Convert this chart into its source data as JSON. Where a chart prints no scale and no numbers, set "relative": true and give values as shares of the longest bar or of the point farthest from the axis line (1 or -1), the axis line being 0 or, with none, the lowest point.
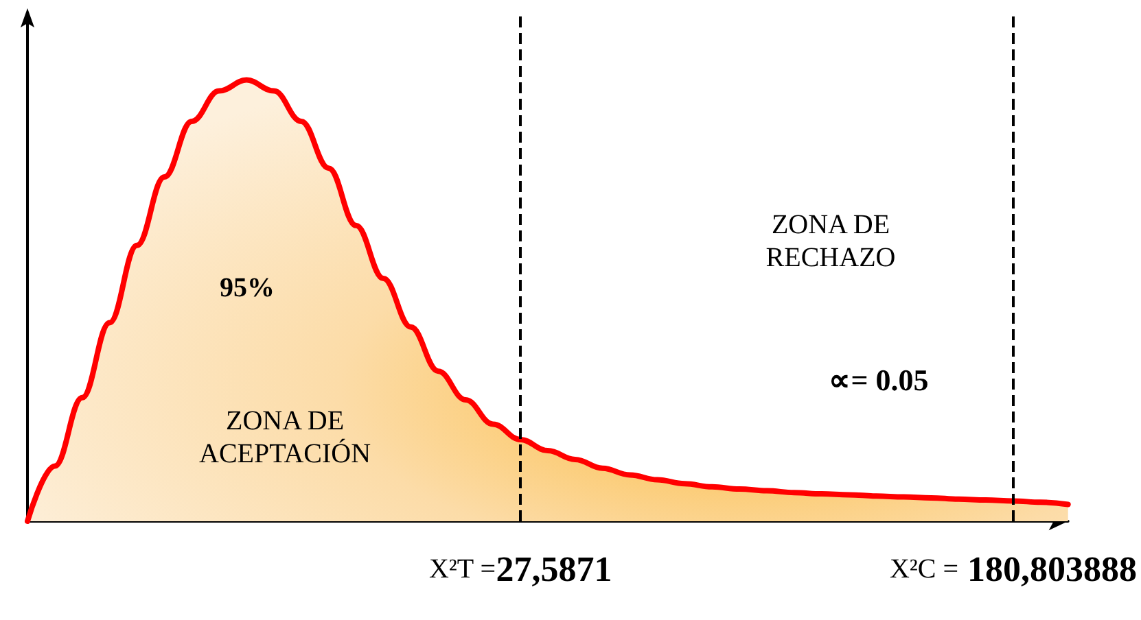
{
  "chart_data": {
    "type": "area",
    "relative": true,
    "grid": false,
    "marker": "none",
    "line_style": "solid",
    "categories": [
      null,
      null,
      null,
      null,
      null,
      null,
      null,
      null,
      null,
      null,
      null,
      null,
      null,
      null,
      null,
      null,
      null,
      null,
      "X²T =27,5871",
      null,
      null,
      null,
      null,
      null,
      null,
      null,
      null,
      null,
      null,
      null,
      null,
      null,
      null,
      null,
      null,
      null,
      "X²C = 180,803888",
      null,
      null
    ],
    "series": [
      {
        "color": "#ff0000",
        "values": [
          0,
          0.125,
          0.28,
          0.45,
          0.625,
          0.78,
          0.906,
          0.975,
          1,
          0.975,
          0.906,
          0.8,
          0.67,
          0.55,
          0.44,
          0.34,
          0.275,
          0.22,
          0.185,
          0.16,
          0.14,
          0.12,
          0.105,
          0.094,
          0.085,
          0.078,
          0.073,
          0.069,
          0.065,
          0.062,
          0.06,
          0.057,
          0.055,
          0.053,
          0.05,
          0.048,
          0.046,
          0.043,
          0.038
        ]
      }
    ],
    "ref_lines": [
      {
        "axis": "x",
        "value": "X²T =27,5871",
        "line_style": "dashed",
        "color": "#000000"
      },
      {
        "axis": "x",
        "value": "X²C = 180,803888",
        "line_style": "dashed",
        "color": "#000000"
      }
    ],
    "annotations": [
      "95%",
      "ZONA DE\nACEPTACIÓN",
      "ZONA DE\nRECHAZO",
      "∝= 0.05"
    ]
  }
}
